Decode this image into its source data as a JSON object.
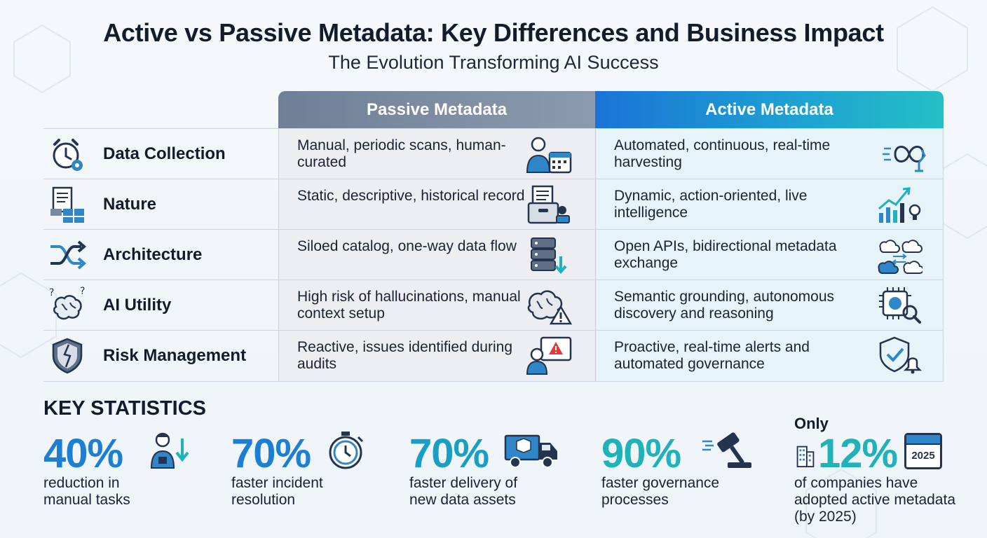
{
  "title": "Active vs Passive Metadata: Key Differences and Business Impact",
  "subtitle": "The Evolution Transforming AI Success",
  "columns": {
    "passive": "Passive Metadata",
    "active": "Active Metadata"
  },
  "rows": [
    {
      "label": "Data Collection",
      "label_icon": "alarm-clock-gear-icon",
      "passive": "Manual, periodic scans, human-curated",
      "passive_icon": "person-calendar-icon",
      "active": "Automated, continuous, real-time harvesting",
      "active_icon": "infinity-robot-arm-icon"
    },
    {
      "label": "Nature",
      "label_icon": "documents-boxes-icon",
      "passive": "Static, descriptive, historical record",
      "passive_icon": "archive-box-stamp-icon",
      "active": "Dynamic, action-oriented, live intelligence",
      "active_icon": "growth-chart-lightbulb-icon"
    },
    {
      "label": "Architecture",
      "label_icon": "crossing-arrows-icon",
      "passive": "Siloed catalog, one-way data flow",
      "passive_icon": "database-down-arrow-icon",
      "active": "Open APIs, bidirectional metadata exchange",
      "active_icon": "cloud-exchange-icon"
    },
    {
      "label": "AI Utility",
      "label_icon": "brain-question-icon",
      "passive": "High risk of hallucinations, manual context setup",
      "passive_icon": "brain-warning-icon",
      "active": "Semantic grounding, autonomous discovery and reasoning",
      "active_icon": "ai-chip-magnifier-icon"
    },
    {
      "label": "Risk Management",
      "label_icon": "cracked-shield-icon",
      "passive": "Reactive, issues identified during audits",
      "passive_icon": "person-alert-screen-icon",
      "active": "Proactive, real-time alerts and automated governance",
      "active_icon": "shield-check-bell-icon"
    }
  ],
  "stats": {
    "heading": "KEY STATISTICS",
    "items": [
      {
        "value": "40%",
        "desc": "reduction in manual tasks",
        "color": "#1c7fd4",
        "icon": "worker-down-arrow-icon"
      },
      {
        "value": "70%",
        "desc": "faster incident resolution",
        "color": "#1c7fd4",
        "icon": "stopwatch-icon"
      },
      {
        "value": "70%",
        "desc": "faster delivery of new data assets",
        "color": "#1a9fc4",
        "icon": "delivery-truck-icon"
      },
      {
        "value": "90%",
        "desc": "faster governance processes",
        "color": "#1fb2b8",
        "icon": "gavel-icon"
      },
      {
        "prefix": "Only",
        "value": "12%",
        "desc": "of companies have adopted active metadata (by 2025)",
        "color": "#1fb2b8",
        "icon": "calendar-2025-icon",
        "icon_text": "2025",
        "pre_icon": "building-icon"
      }
    ]
  },
  "colors": {
    "passive_header": "#7a899e",
    "active_header": "#1a7fd6",
    "accent_teal": "#1fb2b8",
    "icon_navy": "#24344f",
    "icon_blue": "#2f86c8"
  }
}
